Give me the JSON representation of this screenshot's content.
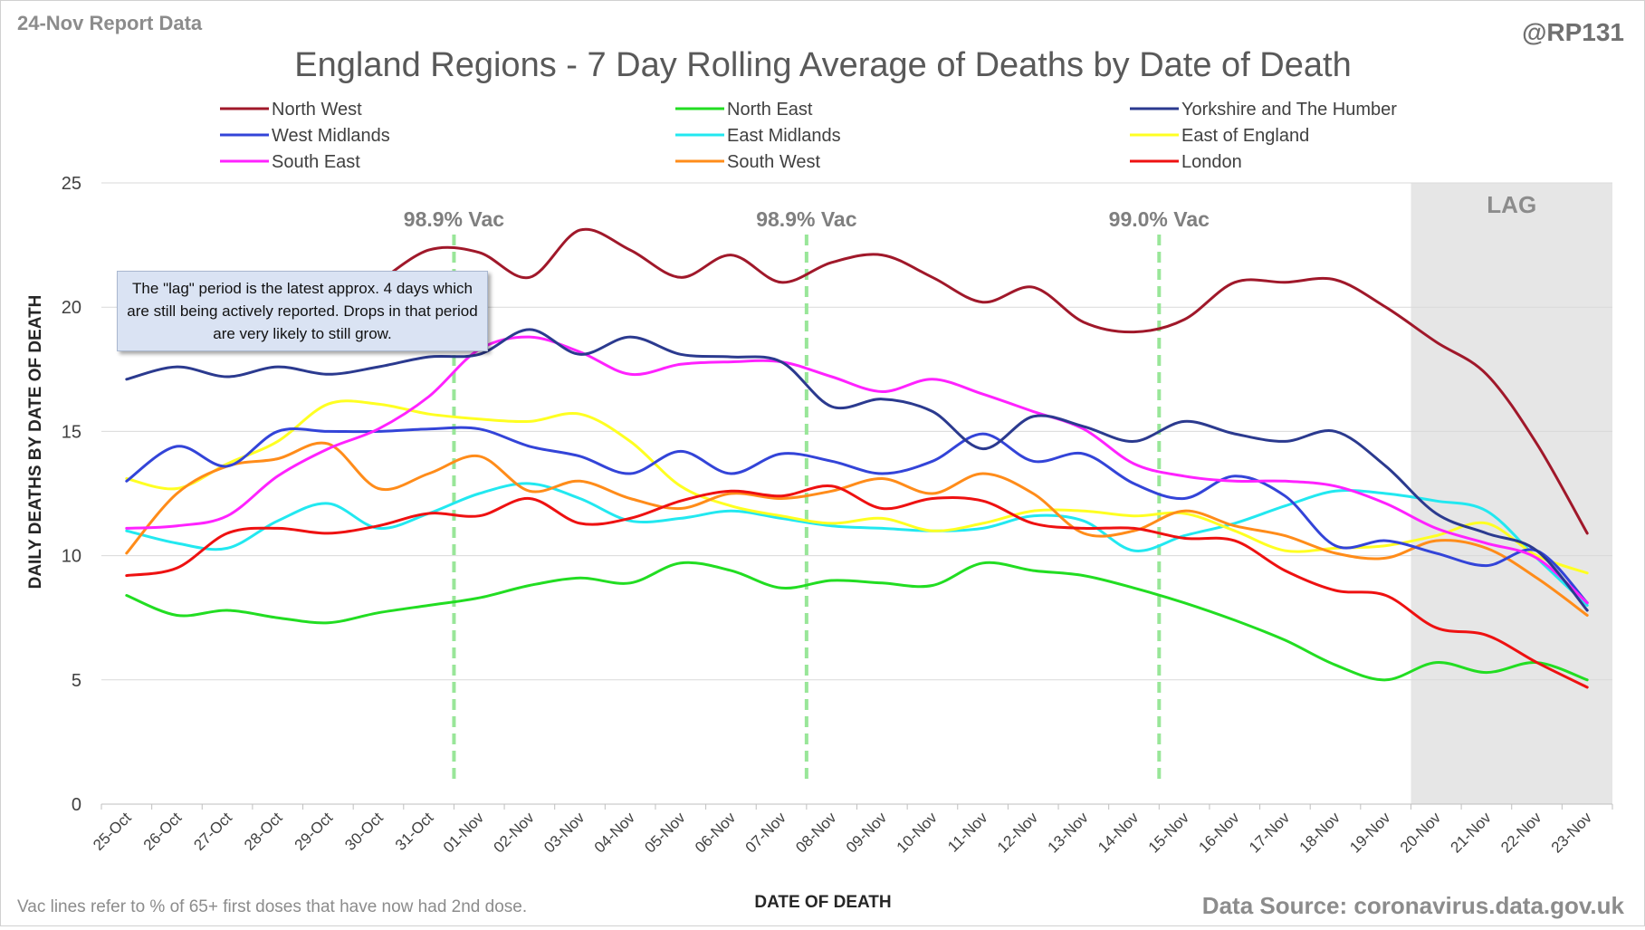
{
  "header": {
    "report_label": "24-Nov Report Data",
    "handle": "@RP131"
  },
  "footer": {
    "vac_note": "Vac lines refer to % of 65+ first doses that have now had 2nd dose.",
    "source": "Data Source: coronavirus.data.gov.uk"
  },
  "lag_note": "The \"lag\" period is the latest approx. 4 days which are still being actively reported.  Drops in that period are very likely to still grow.",
  "colors": {
    "North West": "#a0182a",
    "North East": "#22dd22",
    "Yorkshire and The Humber": "#2b3a8f",
    "West Midlands": "#3344d8",
    "East Midlands": "#22e8f0",
    "East of England": "#ffff22",
    "South East": "#ff22ff",
    "South West": "#ff8c1a",
    "London": "#ee1111",
    "vac_line": "#99e699",
    "lag_shade": "#e6e6e6"
  },
  "chart_data": {
    "type": "line",
    "title": "England Regions - 7 Day Rolling Average of Deaths by Date of Death",
    "xlabel": "DATE OF DEATH",
    "ylabel": "DAILY DEATHS BY DATE OF DEATH",
    "ylim": [
      0,
      25
    ],
    "yticks": [
      0,
      5,
      10,
      15,
      20,
      25
    ],
    "grid": "horizontal",
    "legend_position": "top",
    "categories": [
      "25-Oct",
      "26-Oct",
      "27-Oct",
      "28-Oct",
      "29-Oct",
      "30-Oct",
      "31-Oct",
      "01-Nov",
      "02-Nov",
      "03-Nov",
      "04-Nov",
      "05-Nov",
      "06-Nov",
      "07-Nov",
      "08-Nov",
      "09-Nov",
      "10-Nov",
      "11-Nov",
      "12-Nov",
      "13-Nov",
      "14-Nov",
      "15-Nov",
      "16-Nov",
      "17-Nov",
      "18-Nov",
      "19-Nov",
      "20-Nov",
      "21-Nov",
      "22-Nov",
      "23-Nov"
    ],
    "lag": {
      "start": "20-Nov",
      "end": "23-Nov",
      "label": "LAG"
    },
    "vac_lines": [
      {
        "position": 6.5,
        "label": "98.9% Vac"
      },
      {
        "position": 13.5,
        "label": "98.9% Vac"
      },
      {
        "position": 20.5,
        "label": "99.0% Vac"
      }
    ],
    "series": [
      {
        "name": "North West",
        "values": [
          null,
          null,
          null,
          null,
          null,
          21.0,
          22.3,
          22.2,
          21.2,
          23.1,
          22.3,
          21.2,
          22.1,
          21.0,
          21.8,
          22.1,
          21.2,
          20.2,
          20.8,
          19.4,
          19.0,
          19.5,
          21.0,
          21.0,
          21.1,
          20.0,
          18.6,
          17.3,
          14.5,
          10.9
        ]
      },
      {
        "name": "North East",
        "values": [
          8.4,
          7.6,
          7.8,
          7.5,
          7.3,
          7.7,
          8.0,
          8.3,
          8.8,
          9.1,
          8.9,
          9.7,
          9.4,
          8.7,
          9.0,
          8.9,
          8.8,
          9.7,
          9.4,
          9.2,
          8.7,
          8.1,
          7.4,
          6.6,
          5.6,
          5.0,
          5.7,
          5.3,
          5.7,
          5.0
        ]
      },
      {
        "name": "Yorkshire and The Humber",
        "values": [
          17.1,
          17.6,
          17.2,
          17.6,
          17.3,
          17.6,
          18.0,
          18.1,
          19.1,
          18.1,
          18.8,
          18.1,
          18.0,
          17.8,
          16.0,
          16.3,
          15.8,
          14.3,
          15.6,
          15.2,
          14.6,
          15.4,
          14.9,
          14.6,
          15.0,
          13.6,
          11.7,
          10.9,
          10.2,
          7.8
        ]
      },
      {
        "name": "West Midlands",
        "values": [
          13.0,
          14.4,
          13.6,
          15.0,
          15.0,
          15.0,
          15.1,
          15.1,
          14.4,
          14.0,
          13.3,
          14.2,
          13.3,
          14.1,
          13.8,
          13.3,
          13.8,
          14.9,
          13.8,
          14.1,
          12.9,
          12.3,
          13.2,
          12.4,
          10.4,
          10.6,
          10.1,
          9.6,
          10.2,
          8.1
        ]
      },
      {
        "name": "East Midlands",
        "values": [
          11.0,
          10.5,
          10.3,
          11.4,
          12.1,
          11.1,
          11.7,
          12.5,
          12.9,
          12.3,
          11.4,
          11.5,
          11.8,
          11.5,
          11.2,
          11.1,
          11.0,
          11.1,
          11.6,
          11.4,
          10.2,
          10.8,
          11.3,
          12.0,
          12.6,
          12.5,
          12.2,
          11.8,
          9.9,
          8.0
        ]
      },
      {
        "name": "East of England",
        "values": [
          13.1,
          12.7,
          13.7,
          14.6,
          16.1,
          16.1,
          15.7,
          15.5,
          15.4,
          15.7,
          14.6,
          12.8,
          12.0,
          11.6,
          11.3,
          11.5,
          11.0,
          11.3,
          11.8,
          11.8,
          11.6,
          11.7,
          11.0,
          10.2,
          10.3,
          10.4,
          10.8,
          11.3,
          10.0,
          9.3
        ]
      },
      {
        "name": "South East",
        "values": [
          11.1,
          11.2,
          11.6,
          13.2,
          14.3,
          15.1,
          16.4,
          18.3,
          18.8,
          18.2,
          17.3,
          17.7,
          17.8,
          17.8,
          17.2,
          16.6,
          17.1,
          16.5,
          15.8,
          15.1,
          13.7,
          13.2,
          13.0,
          13.0,
          12.8,
          12.1,
          11.1,
          10.5,
          9.9,
          8.1
        ]
      },
      {
        "name": "South West",
        "values": [
          10.1,
          12.5,
          13.6,
          13.9,
          14.5,
          12.7,
          13.3,
          14.0,
          12.6,
          13.0,
          12.3,
          11.9,
          12.5,
          12.3,
          12.6,
          13.1,
          12.5,
          13.3,
          12.5,
          10.9,
          11.0,
          11.8,
          11.2,
          10.8,
          10.1,
          9.9,
          10.6,
          10.3,
          9.1,
          7.6
        ]
      },
      {
        "name": "London",
        "values": [
          9.2,
          9.5,
          10.9,
          11.1,
          10.9,
          11.2,
          11.7,
          11.6,
          12.3,
          11.3,
          11.5,
          12.2,
          12.6,
          12.4,
          12.8,
          11.9,
          12.3,
          12.2,
          11.3,
          11.1,
          11.1,
          10.7,
          10.6,
          9.4,
          8.6,
          8.4,
          7.1,
          6.8,
          5.7,
          4.7
        ]
      }
    ]
  }
}
